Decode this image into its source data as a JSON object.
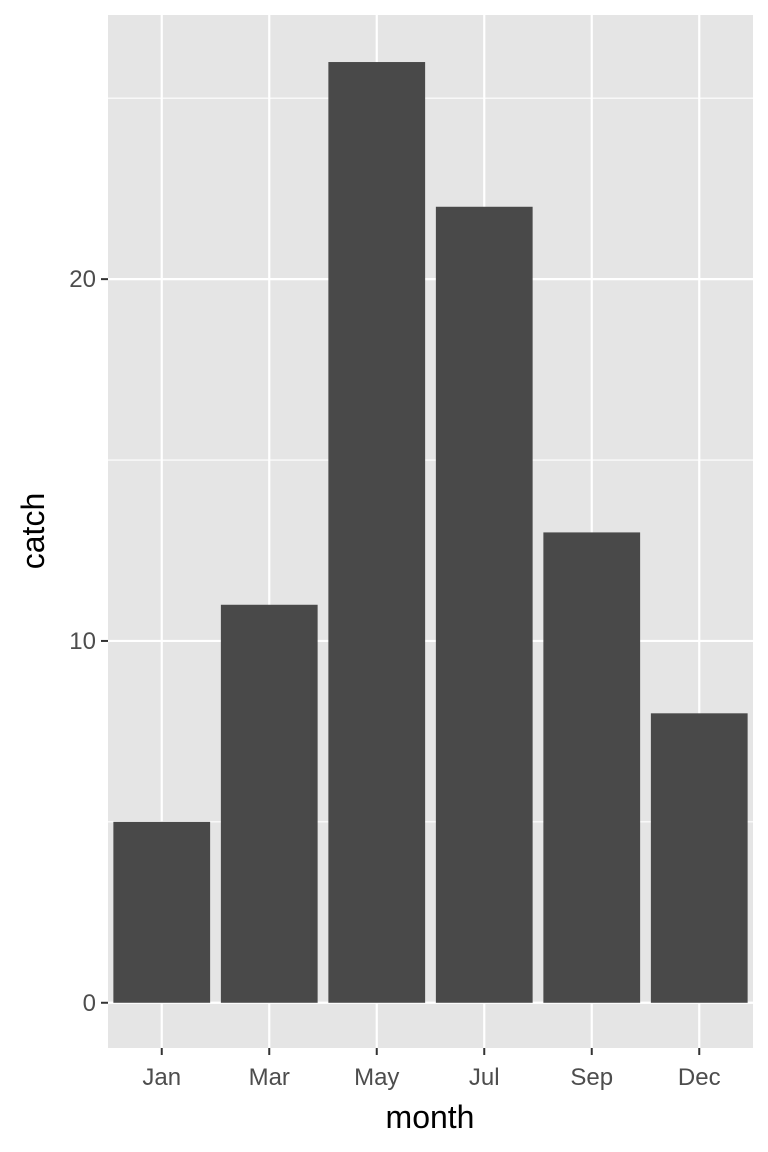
{
  "chart_data": {
    "type": "bar",
    "title": "",
    "xlabel": "month",
    "ylabel": "catch",
    "categories": [
      "Jan",
      "Mar",
      "May",
      "Jul",
      "Sep",
      "Dec"
    ],
    "values": [
      5,
      11,
      26,
      22,
      13,
      8
    ],
    "ylim": [
      -1.25,
      27.3
    ],
    "yticks": [
      0,
      10,
      20
    ],
    "ytick_labels": [
      "0",
      "10",
      "20"
    ],
    "grid": true,
    "colors": {
      "bar": "#494949",
      "panel": "#e5e5e5",
      "grid": "#ffffff"
    }
  }
}
